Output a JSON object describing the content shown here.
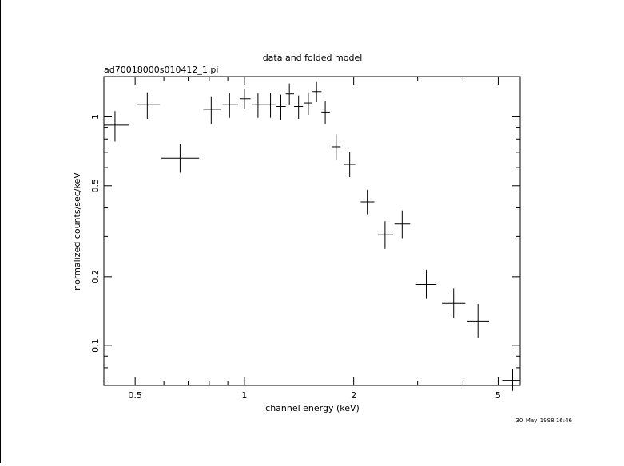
{
  "chart_data": {
    "type": "scatter",
    "title": "data and folded model",
    "subtitle": "ad70018000s010412_1.pi",
    "xlabel": "channel energy (keV)",
    "ylabel": "normalized counts/sec/keV",
    "x_scale": "log",
    "y_scale": "log",
    "xlim": [
      0.41,
      5.75
    ],
    "ylim": [
      0.067,
      1.5
    ],
    "x_ticks": [
      {
        "value": 0.5,
        "label": "0.5"
      },
      {
        "value": 1,
        "label": "1"
      },
      {
        "value": 2,
        "label": "2"
      },
      {
        "value": 5,
        "label": "5"
      }
    ],
    "y_ticks": [
      {
        "value": 0.1,
        "label": "0.1"
      },
      {
        "value": 0.2,
        "label": "0.2"
      },
      {
        "value": 0.5,
        "label": "0.5"
      },
      {
        "value": 1,
        "label": "1"
      }
    ],
    "grid": false,
    "points": [
      {
        "x": 0.44,
        "xlo": 0.41,
        "xhi": 0.48,
        "y": 0.92,
        "ylo": 0.78,
        "yhi": 1.06
      },
      {
        "x": 0.54,
        "xlo": 0.505,
        "xhi": 0.585,
        "y": 1.13,
        "ylo": 0.98,
        "yhi": 1.28
      },
      {
        "x": 0.665,
        "xlo": 0.59,
        "xhi": 0.75,
        "y": 0.66,
        "ylo": 0.57,
        "yhi": 0.76
      },
      {
        "x": 0.81,
        "xlo": 0.77,
        "xhi": 0.86,
        "y": 1.08,
        "ylo": 0.93,
        "yhi": 1.23
      },
      {
        "x": 0.91,
        "xlo": 0.87,
        "xhi": 0.96,
        "y": 1.13,
        "ylo": 0.99,
        "yhi": 1.27
      },
      {
        "x": 1.0,
        "xlo": 0.97,
        "xhi": 1.04,
        "y": 1.2,
        "ylo": 1.08,
        "yhi": 1.32
      },
      {
        "x": 1.09,
        "xlo": 1.05,
        "xhi": 1.135,
        "y": 1.13,
        "ylo": 0.99,
        "yhi": 1.27
      },
      {
        "x": 1.18,
        "xlo": 1.135,
        "xhi": 1.22,
        "y": 1.13,
        "ylo": 0.99,
        "yhi": 1.27
      },
      {
        "x": 1.26,
        "xlo": 1.22,
        "xhi": 1.3,
        "y": 1.11,
        "ylo": 0.97,
        "yhi": 1.25
      },
      {
        "x": 1.33,
        "xlo": 1.3,
        "xhi": 1.37,
        "y": 1.26,
        "ylo": 1.13,
        "yhi": 1.4
      },
      {
        "x": 1.41,
        "xlo": 1.37,
        "xhi": 1.45,
        "y": 1.11,
        "ylo": 0.98,
        "yhi": 1.24
      },
      {
        "x": 1.5,
        "xlo": 1.46,
        "xhi": 1.54,
        "y": 1.15,
        "ylo": 1.02,
        "yhi": 1.28
      },
      {
        "x": 1.58,
        "xlo": 1.54,
        "xhi": 1.63,
        "y": 1.29,
        "ylo": 1.16,
        "yhi": 1.42
      },
      {
        "x": 1.67,
        "xlo": 1.63,
        "xhi": 1.72,
        "y": 1.05,
        "ylo": 0.93,
        "yhi": 1.17
      },
      {
        "x": 1.79,
        "xlo": 1.74,
        "xhi": 1.84,
        "y": 0.74,
        "ylo": 0.65,
        "yhi": 0.84
      },
      {
        "x": 1.95,
        "xlo": 1.88,
        "xhi": 2.02,
        "y": 0.62,
        "ylo": 0.545,
        "yhi": 0.705
      },
      {
        "x": 2.18,
        "xlo": 2.09,
        "xhi": 2.28,
        "y": 0.425,
        "ylo": 0.375,
        "yhi": 0.48
      },
      {
        "x": 2.44,
        "xlo": 2.33,
        "xhi": 2.57,
        "y": 0.305,
        "ylo": 0.265,
        "yhi": 0.35
      },
      {
        "x": 2.72,
        "xlo": 2.59,
        "xhi": 2.86,
        "y": 0.34,
        "ylo": 0.295,
        "yhi": 0.39
      },
      {
        "x": 3.17,
        "xlo": 2.97,
        "xhi": 3.38,
        "y": 0.185,
        "ylo": 0.16,
        "yhi": 0.215
      },
      {
        "x": 3.77,
        "xlo": 3.5,
        "xhi": 4.06,
        "y": 0.153,
        "ylo": 0.132,
        "yhi": 0.178
      },
      {
        "x": 4.4,
        "xlo": 4.11,
        "xhi": 4.72,
        "y": 0.128,
        "ylo": 0.108,
        "yhi": 0.152
      },
      {
        "x": 5.48,
        "xlo": 5.13,
        "xhi": 5.75,
        "y": 0.0705,
        "ylo": 0.0635,
        "yhi": 0.079
      }
    ]
  },
  "footer": {
    "timestamp": "30–May–1998 16:46"
  }
}
